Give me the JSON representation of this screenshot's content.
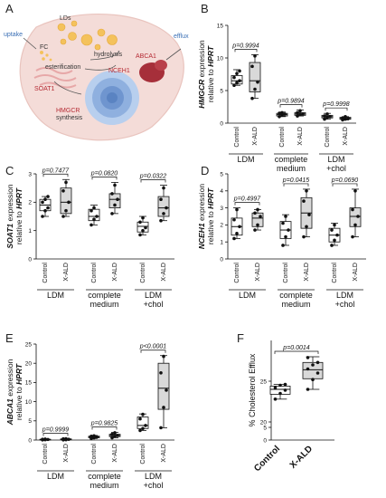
{
  "panel_a": {
    "label": "A",
    "texts": {
      "uptake": "uptake",
      "fc": "FC",
      "lds": "LDs",
      "hydrolysis": "hydrolysis",
      "esterification": "esterification",
      "nceh1": "NCEH1",
      "efflux": "efflux",
      "abca1": "ABCA1",
      "soat1": "SOAT1",
      "hmgcr": "HMGCR",
      "synthesis": "synthesis"
    },
    "colors": {
      "cell": "#f4dcd8",
      "nucleus": "#7aa6d9",
      "lipid": "#f4c25c",
      "protein_red": "#a62f3a",
      "text_red": "#b52a33"
    }
  },
  "chart_data": [
    {
      "panel": "B",
      "type": "box",
      "ylabel": "HMGCR expression relative to HPRT",
      "ylabel_gene": "HMGCR",
      "ylabel_rest1": " expression",
      "ylabel_rest2": "relative to ",
      "ylabel_ref": "HPRT",
      "ylim": [
        0,
        15
      ],
      "yticks": [
        "0",
        "5",
        "10",
        "15"
      ],
      "ytick_values": [
        0,
        5,
        10,
        15
      ],
      "categories": [
        "Control",
        "X-ALD",
        "Control",
        "X-ALD",
        "Control",
        "X-ALD"
      ],
      "groups": [
        {
          "label": [
            "LDM"
          ]
        },
        {
          "label": [
            "complete",
            "medium"
          ]
        },
        {
          "label": [
            "LDM",
            "+chol"
          ]
        }
      ],
      "boxes": [
        {
          "min": 5.8,
          "q1": 6.0,
          "median": 6.5,
          "q3": 7.3,
          "max": 8.2,
          "points": [
            5.8,
            6.2,
            6.5,
            7.0,
            7.6,
            8.0
          ]
        },
        {
          "min": 3.8,
          "q1": 4.8,
          "median": 6.5,
          "q3": 9.3,
          "max": 10.5,
          "points": [
            3.8,
            5.2,
            6.3,
            8.7,
            10.3
          ]
        },
        {
          "min": 1.0,
          "q1": 1.1,
          "median": 1.3,
          "q3": 1.5,
          "max": 1.7,
          "points": [
            1.0,
            1.2,
            1.4,
            1.5,
            1.6
          ]
        },
        {
          "min": 1.1,
          "q1": 1.2,
          "median": 1.4,
          "q3": 1.6,
          "max": 2.0,
          "points": [
            1.1,
            1.3,
            1.4,
            1.6,
            1.9
          ]
        },
        {
          "min": 0.6,
          "q1": 0.8,
          "median": 1.0,
          "q3": 1.2,
          "max": 1.5,
          "points": [
            0.6,
            0.9,
            1.0,
            1.1,
            1.4
          ]
        },
        {
          "min": 0.5,
          "q1": 0.6,
          "median": 0.7,
          "q3": 0.9,
          "max": 1.0,
          "points": [
            0.5,
            0.6,
            0.7,
            0.8,
            1.0
          ]
        }
      ],
      "pvalues": [
        "p=0.9994",
        "p=0.9894",
        "p=0.9998"
      ]
    },
    {
      "panel": "C",
      "type": "box",
      "ylabel_gene": "SOAT1",
      "ylabel_rest1": " expression",
      "ylabel_rest2": "relative to ",
      "ylabel_ref": "HPRT",
      "ylim": [
        0,
        3
      ],
      "yticks": [
        "0",
        "1",
        "2",
        "3"
      ],
      "ytick_values": [
        0,
        1,
        2,
        3
      ],
      "categories": [
        "Control",
        "X-ALD",
        "Control",
        "X-ALD",
        "Control",
        "X-ALD"
      ],
      "groups": [
        {
          "label": [
            "LDM"
          ]
        },
        {
          "label": [
            "complete",
            "medium"
          ]
        },
        {
          "label": [
            "LDM",
            "+chol"
          ]
        }
      ],
      "boxes": [
        {
          "min": 1.5,
          "q1": 1.7,
          "median": 1.9,
          "q3": 2.1,
          "max": 2.2,
          "points": [
            1.5,
            1.7,
            1.8,
            2.0,
            2.1,
            2.2
          ]
        },
        {
          "min": 1.5,
          "q1": 1.6,
          "median": 2.0,
          "q3": 2.5,
          "max": 2.8,
          "points": [
            1.5,
            1.7,
            2.0,
            2.4,
            2.7
          ]
        },
        {
          "min": 1.2,
          "q1": 1.35,
          "median": 1.5,
          "q3": 1.75,
          "max": 1.9,
          "points": [
            1.2,
            1.4,
            1.5,
            1.7,
            1.8
          ]
        },
        {
          "min": 1.6,
          "q1": 1.8,
          "median": 2.1,
          "q3": 2.3,
          "max": 2.7,
          "points": [
            1.6,
            1.9,
            2.1,
            2.3,
            2.6
          ]
        },
        {
          "min": 0.85,
          "q1": 0.95,
          "median": 1.15,
          "q3": 1.3,
          "max": 1.5,
          "points": [
            0.85,
            1.0,
            1.1,
            1.3,
            1.45
          ]
        },
        {
          "min": 1.35,
          "q1": 1.5,
          "median": 1.8,
          "q3": 2.2,
          "max": 2.6,
          "points": [
            1.35,
            1.6,
            1.8,
            2.1,
            2.5
          ]
        }
      ],
      "pvalues": [
        "p=0.7477",
        "p=0.0820",
        "p=0.0322"
      ]
    },
    {
      "panel": "D",
      "type": "box",
      "ylabel_gene": "NCEH1",
      "ylabel_rest1": " expression",
      "ylabel_rest2": "relative to ",
      "ylabel_ref": "HPRT",
      "ylim": [
        0,
        5
      ],
      "yticks": [
        "0",
        "1",
        "2",
        "3",
        "4",
        "5"
      ],
      "ytick_values": [
        0,
        1,
        2,
        3,
        4,
        5
      ],
      "categories": [
        "Control",
        "X-ALD",
        "Control",
        "X-ALD",
        "Control",
        "X-ALD"
      ],
      "groups": [
        {
          "label": [
            "LDM"
          ]
        },
        {
          "label": [
            "complete",
            "medium"
          ]
        },
        {
          "label": [
            "LDM",
            "+chol"
          ]
        }
      ],
      "boxes": [
        {
          "min": 1.2,
          "q1": 1.4,
          "median": 1.9,
          "q3": 2.4,
          "max": 3.0,
          "points": [
            1.2,
            1.5,
            1.9,
            2.3,
            2.9
          ]
        },
        {
          "min": 1.7,
          "q1": 1.9,
          "median": 2.4,
          "q3": 2.7,
          "max": 2.9,
          "points": [
            1.7,
            2.0,
            2.5,
            2.7,
            2.9
          ]
        },
        {
          "min": 0.8,
          "q1": 1.2,
          "median": 1.7,
          "q3": 2.2,
          "max": 2.6,
          "points": [
            0.8,
            1.3,
            1.7,
            2.1,
            2.5
          ]
        },
        {
          "min": 1.3,
          "q1": 1.8,
          "median": 2.7,
          "q3": 3.6,
          "max": 4.1,
          "points": [
            1.3,
            1.9,
            2.6,
            3.4,
            4.0
          ]
        },
        {
          "min": 0.8,
          "q1": 1.0,
          "median": 1.4,
          "q3": 1.8,
          "max": 2.1,
          "points": [
            0.8,
            1.1,
            1.4,
            1.7,
            2.0
          ]
        },
        {
          "min": 1.3,
          "q1": 1.9,
          "median": 2.5,
          "q3": 3.0,
          "max": 4.1,
          "points": [
            1.3,
            2.0,
            2.5,
            2.9,
            4.0
          ]
        }
      ],
      "pvalues": [
        "p=0.4997",
        "p=0.0415",
        "p=0.0690"
      ]
    },
    {
      "panel": "E",
      "type": "box",
      "ylabel_gene": "ABCA1",
      "ylabel_rest1": " expression",
      "ylabel_rest2": "relative to ",
      "ylabel_ref": "HPRT",
      "ylim": [
        0,
        25
      ],
      "yticks": [
        "0",
        "5",
        "10",
        "15",
        "20",
        "25"
      ],
      "ytick_values": [
        0,
        5,
        10,
        15,
        20,
        25
      ],
      "categories": [
        "Control",
        "X-ALD",
        "Control",
        "X-ALD",
        "Control",
        "X-ALD"
      ],
      "groups": [
        {
          "label": [
            "LDM"
          ]
        },
        {
          "label": [
            "complete",
            "medium"
          ]
        },
        {
          "label": [
            "LDM",
            "+chol"
          ]
        }
      ],
      "boxes": [
        {
          "min": 0.05,
          "q1": 0.1,
          "median": 0.15,
          "q3": 0.2,
          "max": 0.25,
          "points": [
            0.05,
            0.1,
            0.15,
            0.2,
            0.25
          ]
        },
        {
          "min": 0.05,
          "q1": 0.1,
          "median": 0.2,
          "q3": 0.3,
          "max": 0.35,
          "points": [
            0.05,
            0.1,
            0.2,
            0.3,
            0.35
          ]
        },
        {
          "min": 0.4,
          "q1": 0.6,
          "median": 0.8,
          "q3": 1.0,
          "max": 1.2,
          "points": [
            0.4,
            0.6,
            0.8,
            1.0,
            1.1
          ]
        },
        {
          "min": 0.6,
          "q1": 0.9,
          "median": 1.2,
          "q3": 1.5,
          "max": 2.0,
          "points": [
            0.6,
            1.0,
            1.2,
            1.5,
            1.9
          ]
        },
        {
          "min": 2.5,
          "q1": 3.0,
          "median": 3.8,
          "q3": 6.0,
          "max": 6.8,
          "points": [
            2.5,
            3.0,
            3.8,
            5.5,
            6.7
          ]
        },
        {
          "min": 3.2,
          "q1": 8.0,
          "median": 13.5,
          "q3": 20.0,
          "max": 22.0,
          "points": [
            3.2,
            8.5,
            13.0,
            17.5,
            21.8
          ]
        }
      ],
      "pvalues": [
        "p=0.9999",
        "p=0.9825",
        "p<0.0001"
      ]
    },
    {
      "panel": "F",
      "type": "box",
      "ylabel": "% Cholesterol Efflux",
      "ylim": [
        0,
        30
      ],
      "axis_break": true,
      "yticks": [
        "0",
        "5",
        "20",
        "25"
      ],
      "ytick_values": [
        0,
        5,
        20,
        25
      ],
      "categories": [
        "Control",
        "X-ALD"
      ],
      "boxes": [
        {
          "min": 22.8,
          "q1": 23.4,
          "median": 24.0,
          "q3": 24.4,
          "max": 24.6,
          "points": [
            22.8,
            23.5,
            23.9,
            24.2,
            24.5,
            24.6
          ]
        },
        {
          "min": 24.0,
          "q1": 25.3,
          "median": 26.4,
          "q3": 27.3,
          "max": 28.0,
          "points": [
            24.0,
            25.2,
            26.0,
            26.5,
            27.0,
            27.3,
            27.9
          ]
        }
      ],
      "pvalues": [
        "p=0.0014"
      ]
    }
  ]
}
